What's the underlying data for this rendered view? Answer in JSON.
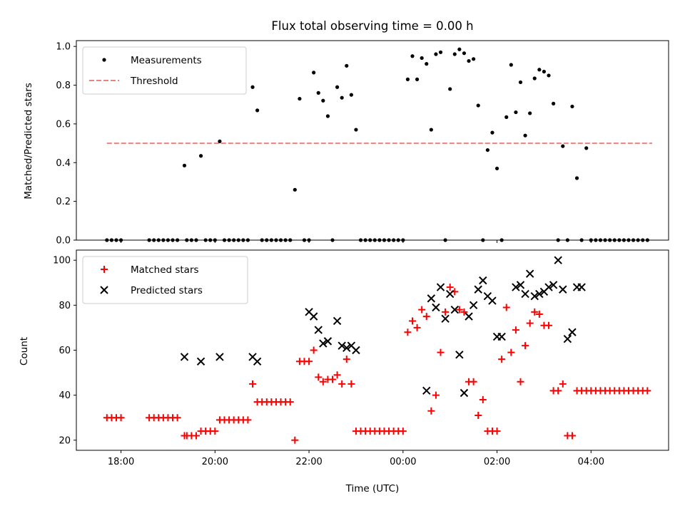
{
  "chart_data": [
    {
      "type": "scatter",
      "title": "Flux total observing time = 0.00 h",
      "xlabel": "",
      "ylabel": "Matched/Predicted stars",
      "xlim": [
        -6.95,
        5.65
      ],
      "ylim": [
        0.0,
        1.03
      ],
      "x_unit": "hours relative to 00:00 UTC",
      "yticks": [
        0.0,
        0.2,
        0.4,
        0.6,
        0.8,
        1.0
      ],
      "ytick_labels": [
        "0.0",
        "0.2",
        "0.4",
        "0.6",
        "0.8",
        "1.0"
      ],
      "legend": {
        "position": "upper-left",
        "entries": [
          "Measurements",
          "Threshold"
        ]
      },
      "series": [
        {
          "name": "Measurements",
          "marker": "dot",
          "color": "#000000",
          "x": [
            -6.3,
            -6.2,
            -6.1,
            -6.0,
            -5.4,
            -5.3,
            -5.2,
            -5.1,
            -5.0,
            -4.9,
            -4.8,
            -4.65,
            -4.6,
            -4.5,
            -4.4,
            -4.3,
            -4.2,
            -4.1,
            -4.0,
            -3.9,
            -3.8,
            -3.7,
            -3.6,
            -3.5,
            -3.4,
            -3.3,
            -3.2,
            -3.1,
            -3.0,
            -2.9,
            -2.8,
            -2.7,
            -2.6,
            -2.5,
            -2.4,
            -2.3,
            -2.2,
            -2.1,
            -2.0,
            -1.9,
            -1.8,
            -1.7,
            -1.6,
            -1.5,
            -1.4,
            -1.3,
            -1.2,
            -1.1,
            -1.0,
            -0.9,
            -0.8,
            -0.7,
            -0.6,
            -0.5,
            -0.4,
            -0.3,
            -0.2,
            -0.1,
            0.0,
            0.1,
            0.2,
            0.3,
            0.4,
            0.5,
            0.6,
            0.7,
            0.8,
            0.9,
            1.0,
            1.1,
            1.2,
            1.3,
            1.4,
            1.5,
            1.6,
            1.7,
            1.8,
            1.9,
            2.0,
            2.1,
            2.2,
            2.3,
            2.4,
            2.5,
            2.6,
            2.7,
            2.8,
            2.9,
            3.0,
            3.1,
            3.2,
            3.3,
            3.4,
            3.5,
            3.6,
            3.7,
            3.8,
            3.9,
            4.0,
            4.1,
            4.2,
            4.3,
            4.4,
            4.5,
            4.6,
            4.7,
            4.8,
            4.9,
            5.0,
            5.1,
            5.2
          ],
          "y": [
            0.0,
            0.0,
            0.0,
            0.0,
            0.0,
            0.0,
            0.0,
            0.0,
            0.0,
            0.0,
            0.0,
            0.385,
            0.0,
            0.0,
            0.0,
            0.435,
            0.0,
            0.0,
            0.0,
            0.51,
            0.0,
            0.0,
            0.0,
            0.0,
            0.0,
            0.0,
            0.79,
            0.67,
            0.0,
            0.0,
            0.0,
            0.0,
            0.0,
            0.0,
            0.0,
            0.26,
            0.73,
            0.0,
            0.0,
            0.865,
            0.76,
            0.72,
            0.64,
            0.0,
            0.79,
            0.735,
            0.9,
            0.75,
            0.57,
            0.0,
            0.0,
            0.0,
            0.0,
            0.0,
            0.0,
            0.0,
            0.0,
            0.0,
            0.0,
            0.83,
            0.95,
            0.83,
            0.94,
            0.91,
            0.57,
            0.96,
            0.97,
            0.0,
            0.78,
            0.96,
            0.985,
            0.965,
            0.925,
            0.935,
            0.695,
            0.0,
            0.465,
            0.555,
            0.37,
            0.0,
            0.635,
            0.905,
            0.66,
            0.815,
            0.54,
            0.655,
            0.835,
            0.88,
            0.87,
            0.85,
            0.705,
            0.0,
            0.485,
            0.0,
            0.69,
            0.32,
            0.0,
            0.475,
            0.0,
            0.0,
            0.0,
            0.0,
            0.0,
            0.0,
            0.0,
            0.0,
            0.0,
            0.0,
            0.0,
            0.0,
            0.0
          ]
        },
        {
          "name": "Threshold",
          "line": "dashed",
          "color": "#f08080",
          "x": [
            -6.3,
            5.3
          ],
          "y": [
            0.5,
            0.5
          ]
        }
      ]
    },
    {
      "type": "scatter",
      "title": "",
      "xlabel": "Time (UTC)",
      "ylabel": "Count",
      "xlim": [
        -6.95,
        5.65
      ],
      "ylim": [
        15.5,
        104.5
      ],
      "x_unit": "hours relative to 00:00 UTC",
      "xticks": [
        -6,
        -4,
        -2,
        0,
        2,
        4
      ],
      "xtick_labels": [
        "18:00",
        "20:00",
        "22:00",
        "00:00",
        "02:00",
        "04:00"
      ],
      "yticks": [
        20,
        40,
        60,
        80,
        100
      ],
      "ytick_labels": [
        "20",
        "40",
        "60",
        "80",
        "100"
      ],
      "legend": {
        "position": "upper-left",
        "entries": [
          "Matched stars",
          "Predicted stars"
        ]
      },
      "series": [
        {
          "name": "Matched stars",
          "marker": "plus",
          "color": "#ff0000",
          "x": [
            -6.3,
            -6.2,
            -6.1,
            -6.0,
            -5.4,
            -5.3,
            -5.2,
            -5.1,
            -5.0,
            -4.9,
            -4.8,
            -4.65,
            -4.6,
            -4.5,
            -4.4,
            -4.3,
            -4.2,
            -4.1,
            -4.0,
            -3.9,
            -3.8,
            -3.7,
            -3.6,
            -3.5,
            -3.4,
            -3.3,
            -3.2,
            -3.1,
            -3.0,
            -2.9,
            -2.8,
            -2.7,
            -2.6,
            -2.5,
            -2.4,
            -2.3,
            -2.2,
            -2.1,
            -2.0,
            -1.9,
            -1.8,
            -1.7,
            -1.6,
            -1.5,
            -1.4,
            -1.3,
            -1.2,
            -1.1,
            -1.0,
            -0.9,
            -0.8,
            -0.7,
            -0.6,
            -0.5,
            -0.4,
            -0.3,
            -0.2,
            -0.1,
            0.0,
            0.1,
            0.2,
            0.3,
            0.4,
            0.5,
            0.6,
            0.7,
            0.8,
            0.9,
            1.0,
            1.1,
            1.2,
            1.3,
            1.4,
            1.5,
            1.6,
            1.7,
            1.8,
            1.9,
            2.0,
            2.1,
            2.2,
            2.3,
            2.4,
            2.5,
            2.6,
            2.7,
            2.8,
            2.9,
            3.0,
            3.1,
            3.2,
            3.3,
            3.4,
            3.5,
            3.6,
            3.7,
            3.8,
            3.9,
            4.0,
            4.1,
            4.2,
            4.3,
            4.4,
            4.5,
            4.6,
            4.7,
            4.8,
            4.9,
            5.0,
            5.1,
            5.2
          ],
          "y": [
            30,
            30,
            30,
            30,
            30,
            30,
            30,
            30,
            30,
            30,
            30,
            22,
            22,
            22,
            22,
            24,
            24,
            24,
            24,
            29,
            29,
            29,
            29,
            29,
            29,
            29,
            45,
            37,
            37,
            37,
            37,
            37,
            37,
            37,
            37,
            20,
            55,
            55,
            55,
            60,
            48,
            46,
            47,
            47,
            49,
            45,
            56,
            45,
            24,
            24,
            24,
            24,
            24,
            24,
            24,
            24,
            24,
            24,
            24,
            68,
            73,
            70,
            78,
            75,
            33,
            40,
            59,
            77,
            88,
            86,
            78,
            77,
            46,
            46,
            31,
            38,
            24,
            24,
            24,
            56,
            79,
            59,
            69,
            46,
            62,
            72,
            77,
            76,
            71,
            71,
            42,
            42,
            45,
            22,
            22,
            42,
            42,
            42,
            42,
            42,
            42,
            42,
            42,
            42,
            42,
            42,
            42,
            42,
            42,
            42,
            42
          ]
        },
        {
          "name": "Predicted stars",
          "marker": "x",
          "color": "#000000",
          "x": [
            -4.65,
            -4.3,
            -3.9,
            -3.2,
            -3.1,
            -2.0,
            -1.9,
            -1.8,
            -1.7,
            -1.6,
            -1.4,
            -1.3,
            -1.2,
            -1.1,
            -1.0,
            0.5,
            0.6,
            0.7,
            0.8,
            0.9,
            1.0,
            1.1,
            1.2,
            1.3,
            1.4,
            1.5,
            1.6,
            1.7,
            1.8,
            1.9,
            2.0,
            2.1,
            2.4,
            2.5,
            2.6,
            2.7,
            2.8,
            2.9,
            3.0,
            3.1,
            3.2,
            3.3,
            3.4,
            3.5,
            3.6,
            3.7,
            3.8
          ],
          "y": [
            57,
            55,
            57,
            57,
            55,
            77,
            75,
            69,
            63,
            64,
            73,
            62,
            61,
            62,
            60,
            42,
            83,
            79,
            88,
            74,
            85,
            78,
            58,
            41,
            75,
            80,
            87,
            91,
            84,
            82,
            66,
            66,
            88,
            89,
            85,
            94,
            84,
            85,
            86,
            88,
            89,
            100,
            87,
            65,
            68,
            88,
            88
          ]
        }
      ]
    }
  ]
}
